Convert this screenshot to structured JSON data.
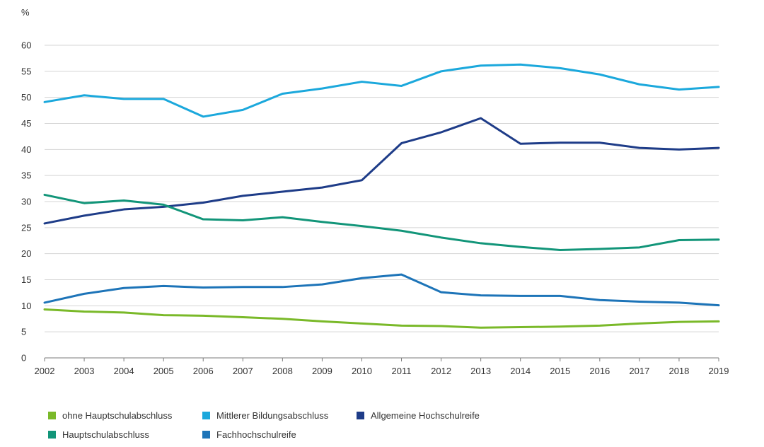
{
  "chart_data": {
    "type": "line",
    "unit_label": "%",
    "x": [
      "2002",
      "2003",
      "2004",
      "2005",
      "2006",
      "2007",
      "2008",
      "2009",
      "2010",
      "2011",
      "2012",
      "2013",
      "2014",
      "2015",
      "2016",
      "2017",
      "2018",
      "2019"
    ],
    "ylim": [
      0,
      60
    ],
    "yticks": [
      "0",
      "5",
      "10",
      "15",
      "20",
      "25",
      "30",
      "35",
      "40",
      "45",
      "50",
      "55",
      "60"
    ],
    "grid": true,
    "legend_position": "bottom",
    "series": [
      {
        "name": "ohne Hauptschulabschluss",
        "color": "#7ab929",
        "values": [
          9.3,
          8.9,
          8.7,
          8.2,
          8.1,
          7.8,
          7.5,
          7.0,
          6.6,
          6.2,
          6.1,
          5.8,
          5.9,
          6.0,
          6.2,
          6.6,
          6.9,
          7.0
        ]
      },
      {
        "name": "Mittlerer Bildungsabschluss",
        "color": "#1ba8dc",
        "values": [
          49.1,
          50.4,
          49.7,
          49.7,
          46.3,
          47.6,
          50.7,
          51.7,
          53.0,
          52.2,
          55.0,
          56.1,
          56.3,
          55.6,
          54.4,
          52.5,
          51.5,
          52.0
        ]
      },
      {
        "name": "Allgemeine Hochschulreife",
        "color": "#1e3c88",
        "values": [
          25.8,
          27.3,
          28.5,
          29.0,
          29.8,
          31.1,
          31.9,
          32.7,
          34.1,
          41.2,
          43.3,
          46.0,
          41.1,
          41.3,
          41.3,
          40.3,
          40.0,
          40.3
        ]
      },
      {
        "name": "Hauptschulabschluss",
        "color": "#129579",
        "values": [
          31.3,
          29.7,
          30.2,
          29.4,
          26.6,
          26.4,
          27.0,
          26.1,
          25.3,
          24.4,
          23.1,
          22.0,
          21.3,
          20.7,
          20.9,
          21.2,
          22.6,
          22.7
        ]
      },
      {
        "name": "Fachhochschulreife",
        "color": "#1d74b8",
        "values": [
          10.6,
          12.3,
          13.4,
          13.8,
          13.5,
          13.6,
          13.6,
          14.1,
          15.3,
          16.0,
          12.6,
          12.0,
          11.9,
          11.9,
          11.1,
          10.8,
          10.6,
          10.1
        ]
      }
    ]
  }
}
